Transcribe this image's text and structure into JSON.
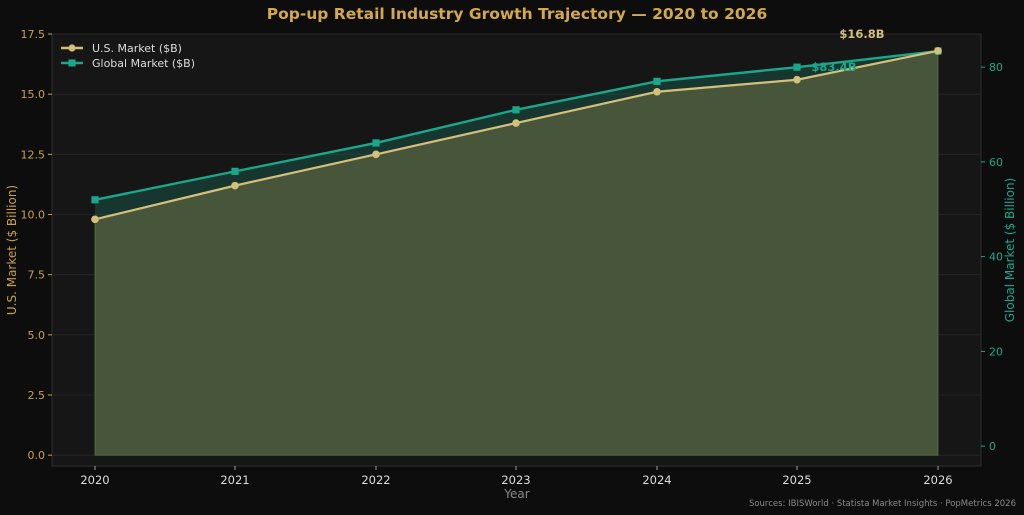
{
  "colors": {
    "background": "#0d0d0d",
    "plot_background": "#161616",
    "title": "#d4a84b",
    "us": "#d4c07a",
    "global": "#1aa88a",
    "area_fill": "#4a5a3c",
    "axis_text": "#9a9a9a"
  },
  "chart_data": {
    "type": "line",
    "title": "Pop-up Retail Industry Growth Trajectory — 2020 to 2026",
    "xlabel": "Year",
    "ylabel_left": "U.S. Market ($ Billion)",
    "ylabel_right": "Global Market ($ Billion)",
    "categories": [
      "2020",
      "2021",
      "2022",
      "2023",
      "2024",
      "2025",
      "2026"
    ],
    "ylim_left": [
      -0.45,
      17.5
    ],
    "ylim_right": [
      -4.2,
      87
    ],
    "yticks_left": [
      "0.0",
      "2.5",
      "5.0",
      "7.5",
      "10.0",
      "12.5",
      "15.0",
      "17.5"
    ],
    "yticks_right": [
      "0",
      "20",
      "40",
      "60",
      "80"
    ],
    "series": [
      {
        "name": "U.S. Market ($B)",
        "axis": "left",
        "marker": "circle",
        "values": [
          9.8,
          11.2,
          12.5,
          13.8,
          15.1,
          15.6,
          16.8
        ]
      },
      {
        "name": "Global Market ($B)",
        "axis": "right",
        "marker": "square",
        "values": [
          52,
          58,
          64,
          71,
          77,
          80,
          83.4
        ]
      }
    ],
    "annotations": [
      {
        "text": "$16.8B",
        "series": "U.S. Market ($B)"
      },
      {
        "text": "$83.4B",
        "series": "Global Market ($B)"
      }
    ],
    "legend_position": "top-left",
    "grid": true,
    "source": "Sources: IBISWorld · Statista Market Insights · PopMetrics 2026"
  }
}
